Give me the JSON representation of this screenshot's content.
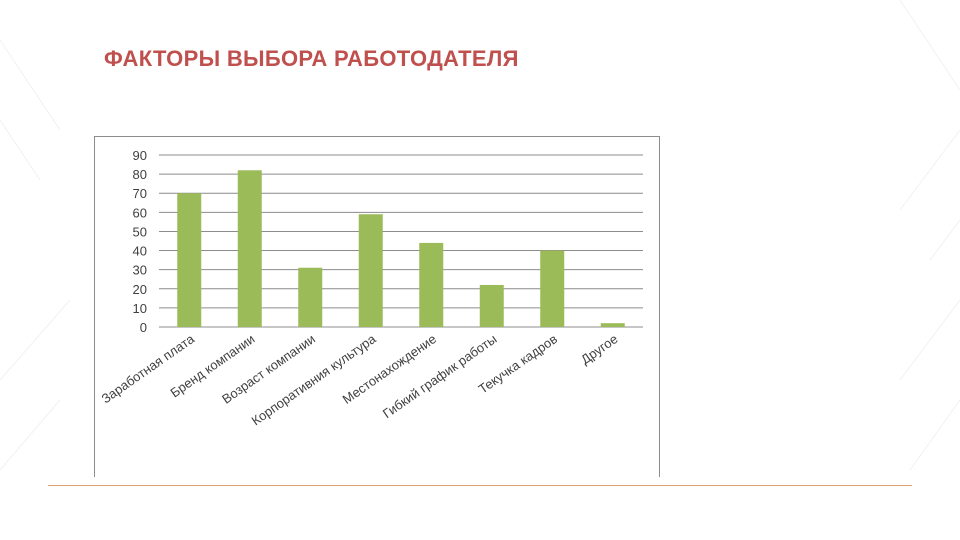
{
  "slide": {
    "title": "ФАКТОРЫ ВЫБОРА РАБОТОДАТЕЛЯ"
  },
  "colors": {
    "title": "#c0504d",
    "bar": "#9bbb59",
    "grid": "#8c8c8c",
    "footer_line": "#e0a272"
  },
  "chart_data": {
    "type": "bar",
    "categories": [
      "Заработная плата",
      "Бренд компании",
      "Возраст компании",
      "Корпоративния культура",
      "Местонахождение",
      "Гибкий график работы",
      "Текучка кадров",
      "Другое"
    ],
    "values": [
      70,
      82,
      31,
      59,
      44,
      22,
      40,
      2
    ],
    "ylim": [
      0,
      90
    ],
    "yticks": [
      "0",
      "10",
      "20",
      "30",
      "40",
      "50",
      "60",
      "70",
      "80",
      "90"
    ],
    "grid": true,
    "legend": "none"
  }
}
